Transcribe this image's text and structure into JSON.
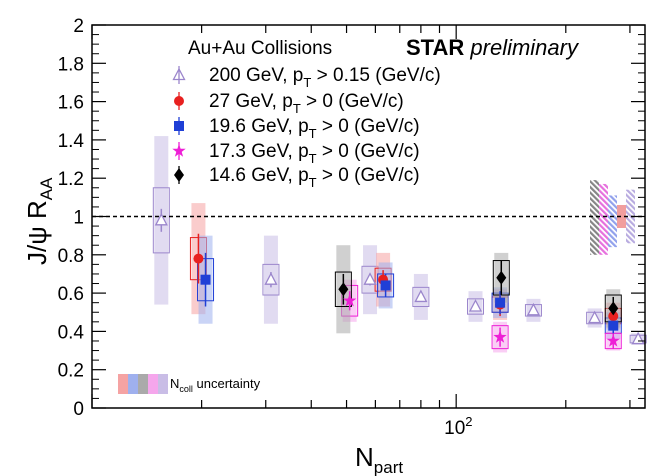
{
  "chart_data": {
    "type": "scatter",
    "xlabel_main": "N",
    "xlabel_sub": "part",
    "ylabel_main": "J/ψ R",
    "ylabel_sub": "AA",
    "x_scale": "log",
    "x_range": [
      10,
      330
    ],
    "x_tick_labels": [
      {
        "value": 100,
        "base": "10",
        "exp": "2"
      }
    ],
    "y_range": [
      0,
      2
    ],
    "y_ticks": [
      "0",
      "0.2",
      "0.4",
      "0.6",
      "0.8",
      "1",
      "1.2",
      "1.4",
      "1.6",
      "1.8",
      "2"
    ],
    "reference_line": 1,
    "legend": {
      "header": "Au+Au Collisions",
      "brand_bold": "STAR",
      "brand_italic": "preliminary",
      "entries": [
        {
          "pre": "200 GeV, p",
          "sub": "T",
          "post": " > 0.15 (GeV/c)"
        },
        {
          "pre": "27 GeV, p",
          "sub": "T",
          "post": " > 0 (GeV/c)"
        },
        {
          "pre": "19.6 GeV, p",
          "sub": "T",
          "post": " > 0 (GeV/c)"
        },
        {
          "pre": "17.3 GeV, p",
          "sub": "T",
          "post": " > 0 (GeV/c)"
        },
        {
          "pre": "14.6 GeV, p",
          "sub": "T",
          "post": " > 0 (GeV/c)"
        }
      ]
    },
    "ncoll_label": {
      "pre": "N",
      "sub": "coll",
      "post": " uncertainty"
    },
    "series": [
      {
        "name": "200 GeV",
        "marker": "open-triangle",
        "color": "#9b86cc",
        "box_color": "#c9bde6",
        "points": [
          {
            "x": 15.5,
            "y": 0.98,
            "err": 0.06,
            "sys": 0.17,
            "box": 0.44
          },
          {
            "x": 31,
            "y": 0.67,
            "err": 0.04,
            "sys": 0.08,
            "box": 0.23
          },
          {
            "x": 58,
            "y": 0.67,
            "err": 0.03,
            "sys": 0.07,
            "box": 0.18
          },
          {
            "x": 80,
            "y": 0.58,
            "err": 0.02,
            "sys": 0.05,
            "box": 0.12
          },
          {
            "x": 113,
            "y": 0.53,
            "err": 0.02,
            "sys": 0.04,
            "box": 0.08
          },
          {
            "x": 163,
            "y": 0.51,
            "err": 0.02,
            "sys": 0.03,
            "box": 0.06
          },
          {
            "x": 240,
            "y": 0.47,
            "err": 0.02,
            "sys": 0.03,
            "box": 0.05
          },
          {
            "x": 316,
            "y": 0.36,
            "err": 0.02,
            "sys": 0.02,
            "box": 0.03
          }
        ]
      },
      {
        "name": "27 GeV",
        "marker": "circle",
        "color": "#e8201f",
        "box_color": "#f5a3a3",
        "points": [
          {
            "x": 19.6,
            "y": 0.78,
            "err": 0.13,
            "sys": 0.11,
            "box": 0.29
          },
          {
            "x": 63,
            "y": 0.67,
            "err": 0.05,
            "sys": 0.06,
            "box": 0.14
          },
          {
            "x": 132,
            "y": 0.54,
            "err": 0.06,
            "sys": 0.04,
            "box": 0.08
          },
          {
            "x": 270,
            "y": 0.48,
            "err": 0.05,
            "sys": 0.04,
            "box": 0.07
          }
        ]
      },
      {
        "name": "19.6 GeV",
        "marker": "square",
        "color": "#1f3fd6",
        "box_color": "#9fb0ee",
        "points": [
          {
            "x": 20.5,
            "y": 0.67,
            "err": 0.14,
            "sys": 0.11,
            "box": 0.23
          },
          {
            "x": 64,
            "y": 0.64,
            "err": 0.06,
            "sys": 0.06,
            "box": 0.12
          },
          {
            "x": 132,
            "y": 0.55,
            "err": 0.06,
            "sys": 0.05,
            "box": 0.08
          },
          {
            "x": 270,
            "y": 0.43,
            "err": 0.05,
            "sys": 0.04,
            "box": 0.07
          }
        ]
      },
      {
        "name": "17.3 GeV",
        "marker": "star",
        "color": "#ee1fd6",
        "box_color": "#f5a6ec",
        "points": [
          {
            "x": 51,
            "y": 0.56,
            "err": 0.05,
            "sys": 0.08,
            "box": 0.11
          },
          {
            "x": 132,
            "y": 0.37,
            "err": 0.05,
            "sys": 0.06,
            "box": 0.08
          },
          {
            "x": 270,
            "y": 0.35,
            "err": 0.04,
            "sys": 0.04,
            "box": 0.05
          }
        ]
      },
      {
        "name": "14.6 GeV",
        "marker": "diamond",
        "color": "#000000",
        "box_color": "#aaaaaa",
        "points": [
          {
            "x": 49,
            "y": 0.62,
            "err": 0.08,
            "sys": 0.09,
            "box": 0.23
          },
          {
            "x": 133,
            "y": 0.68,
            "err": 0.09,
            "sys": 0.09,
            "box": 0.13
          },
          {
            "x": 270,
            "y": 0.52,
            "err": 0.06,
            "sys": 0.07,
            "box": 0.1
          }
        ]
      }
    ],
    "ncoll_bands": [
      {
        "name": "14.6 GeV",
        "color": "#777777",
        "low": 0.8,
        "high": 1.19
      },
      {
        "name": "17.3 GeV",
        "color": "#e35fd9",
        "low": 0.8,
        "high": 1.17
      },
      {
        "name": "19.6 GeV",
        "color": "#8596ea",
        "low": 0.84,
        "high": 1.11
      },
      {
        "name": "27 GeV",
        "color": "#f09494",
        "low": 0.94,
        "high": 1.06
      },
      {
        "name": "200 GeV",
        "color": "#b0a2dc",
        "low": 0.86,
        "high": 1.14
      }
    ],
    "ncoll_legend_colors": [
      "#f5a3a3",
      "#9fb0ee",
      "#aaaaaa",
      "#f5a6ec",
      "#c9bde6"
    ]
  }
}
